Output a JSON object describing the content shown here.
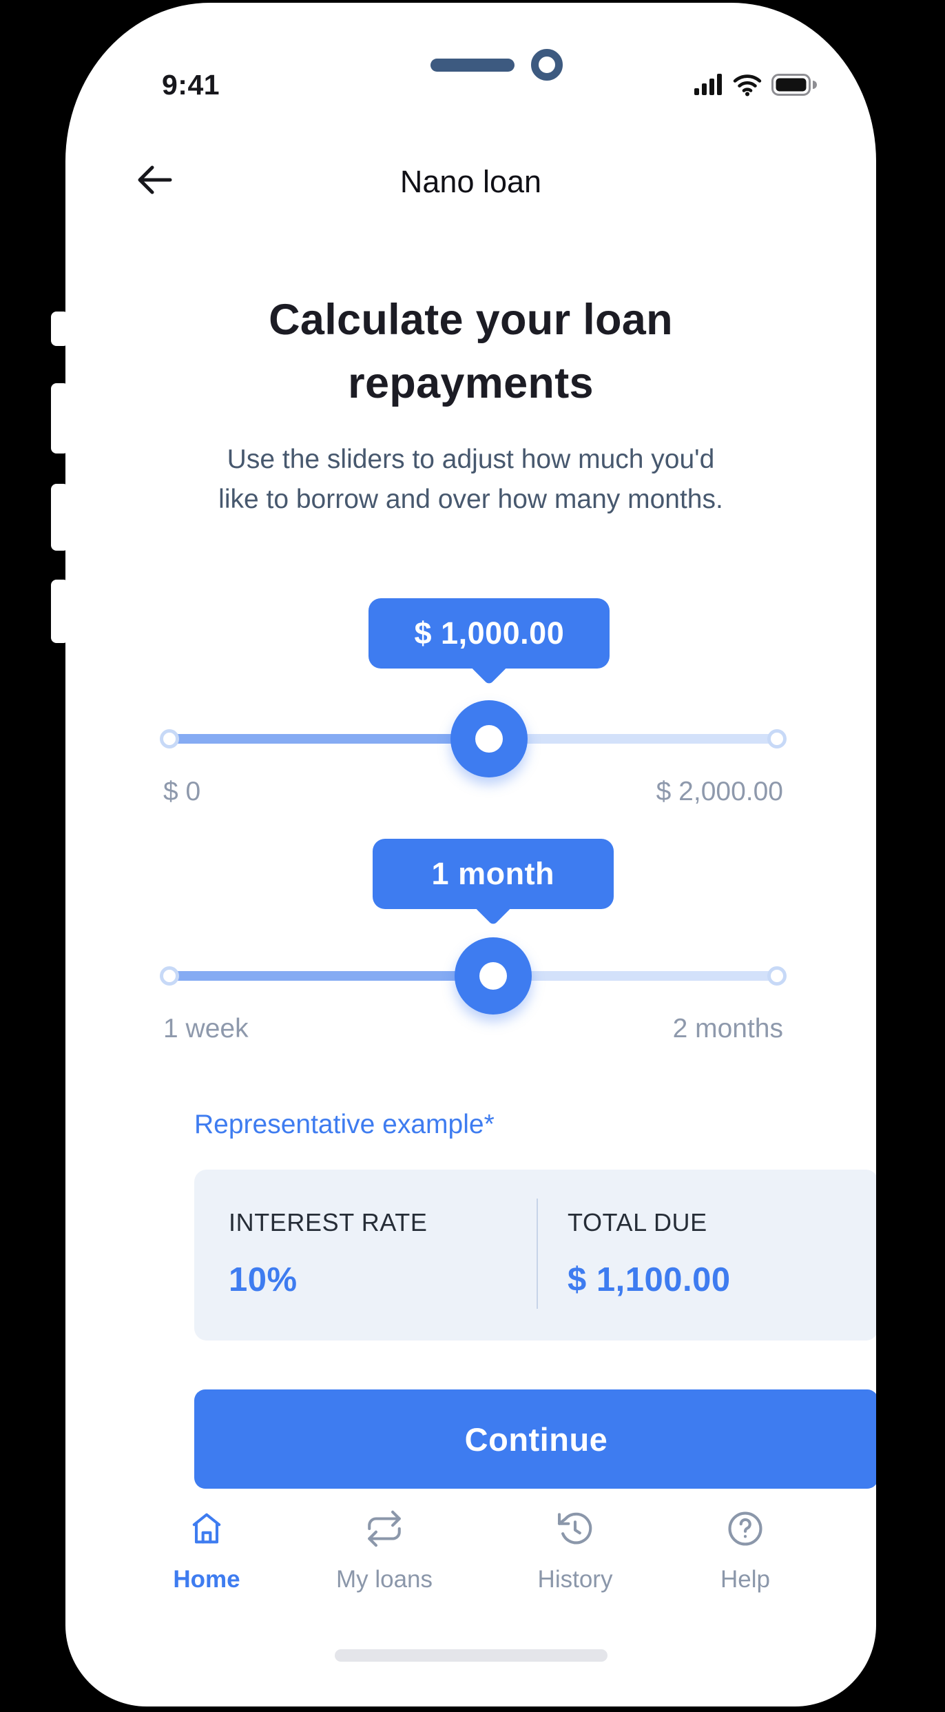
{
  "colors": {
    "accent": "#3E7CF0",
    "track-fill": "#85ABF3",
    "track-rest": "#D3E1FA",
    "text-dark": "#1C1C24",
    "text-slate": "#47586E",
    "text-muted": "#8E99AC",
    "card-bg": "#EDF2F9",
    "nav-inactive": "#8B97AA",
    "notch": "#3D5A80",
    "indicator": "#E4E5EA"
  },
  "status_bar": {
    "time": "9:41"
  },
  "header": {
    "title": "Nano loan"
  },
  "intro": {
    "title": "Calculate your loan repayments",
    "subtitle": "Use the sliders to adjust how much you'd like to borrow and over how many months."
  },
  "amount_slider": {
    "value": "$ 1,000.00",
    "min": "$ 0",
    "max": "$ 2,000.00",
    "percent": 52.6
  },
  "term_slider": {
    "value": "1 month",
    "min": "1 week",
    "max": "2 months",
    "percent": 53.2
  },
  "example": {
    "heading": "Representative example*",
    "columns": [
      {
        "label": "INTEREST RATE",
        "value": "10%"
      },
      {
        "label": "TOTAL DUE",
        "value": "$ 1,100.00"
      }
    ]
  },
  "actions": {
    "continue": "Continue"
  },
  "nav": {
    "items": [
      {
        "label": "Home",
        "icon": "home-icon",
        "active": true
      },
      {
        "label": "My loans",
        "icon": "repeat-icon",
        "active": false
      },
      {
        "label": "History",
        "icon": "history-icon",
        "active": false
      },
      {
        "label": "Help",
        "icon": "help-icon",
        "active": false
      }
    ]
  }
}
